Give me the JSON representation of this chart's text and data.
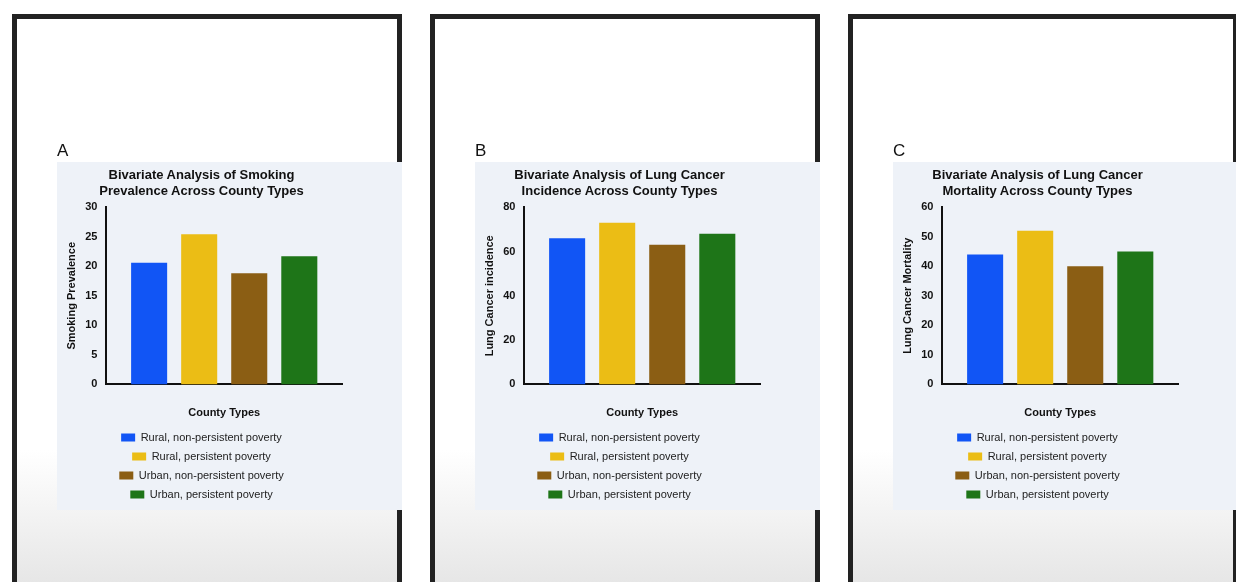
{
  "chart_data": [
    {
      "type": "bar",
      "title": "Bivariate Analysis of Smoking Prevalence Across County Types",
      "xlabel": "County Types",
      "ylabel": "Smoking Prevalence",
      "annotations": [
        "A"
      ],
      "categories": [
        null
      ],
      "series": [
        {
          "name": "Rural, non-persistent poverty",
          "color": "#1155f5",
          "values": [
            20.6
          ]
        },
        {
          "name": "Rural, persistent poverty",
          "color": "#ebbd15",
          "values": [
            25.4
          ]
        },
        {
          "name": "Urban, non-persistent poverty",
          "color": "#8b5e14",
          "values": [
            18.8
          ]
        },
        {
          "name": "Urban, persistent poverty",
          "color": "#1e7518",
          "values": [
            21.7
          ]
        }
      ],
      "ylim": [
        0,
        30
      ],
      "yticks": [
        0,
        5,
        10,
        15,
        20,
        25,
        30
      ],
      "grid": false,
      "legend": "bottom"
    },
    {
      "type": "bar",
      "title": "Bivariate Analysis of Lung Cancer Incidence Across County Types",
      "xlabel": "County Types",
      "ylabel": "Lung Cancer incidence",
      "annotations": [
        "B"
      ],
      "categories": [
        null
      ],
      "series": [
        {
          "name": "Rural, non-persistent poverty",
          "color": "#1155f5",
          "values": [
            66
          ]
        },
        {
          "name": "Rural, persistent poverty",
          "color": "#ebbd15",
          "values": [
            73
          ]
        },
        {
          "name": "Urban, non-persistent poverty",
          "color": "#8b5e14",
          "values": [
            63
          ]
        },
        {
          "name": "Urban, persistent poverty",
          "color": "#1e7518",
          "values": [
            68
          ]
        }
      ],
      "ylim": [
        0,
        80
      ],
      "yticks": [
        0,
        20,
        40,
        60,
        80
      ],
      "grid": false,
      "legend": "bottom"
    },
    {
      "type": "bar",
      "title": "Bivariate Analysis of Lung Cancer Mortality Across County Types",
      "xlabel": "County Types",
      "ylabel": "Lung Cancer Mortality",
      "annotations": [
        "C"
      ],
      "categories": [
        null
      ],
      "series": [
        {
          "name": "Rural, non-persistent poverty",
          "color": "#1155f5",
          "values": [
            44
          ]
        },
        {
          "name": "Rural, persistent poverty",
          "color": "#ebbd15",
          "values": [
            52
          ]
        },
        {
          "name": "Urban, non-persistent poverty",
          "color": "#8b5e14",
          "values": [
            40
          ]
        },
        {
          "name": "Urban, persistent poverty",
          "color": "#1e7518",
          "values": [
            45
          ]
        }
      ],
      "ylim": [
        0,
        60
      ],
      "yticks": [
        0,
        10,
        20,
        30,
        40,
        50,
        60
      ],
      "grid": false,
      "legend": "bottom"
    }
  ]
}
